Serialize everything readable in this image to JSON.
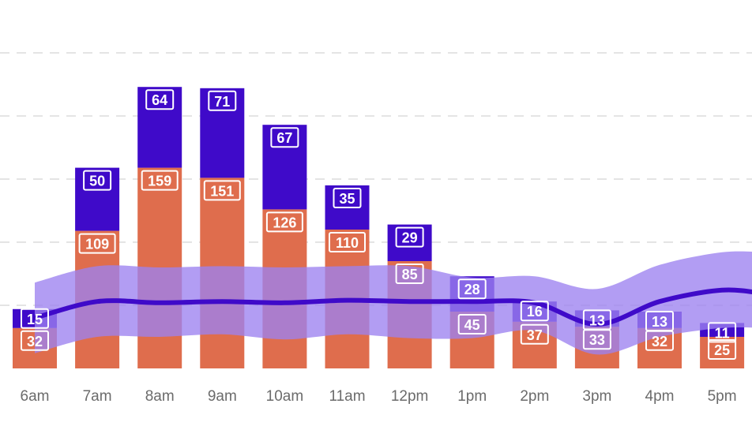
{
  "chart_data": {
    "type": "bar",
    "stacked": true,
    "categories": [
      "6am",
      "7am",
      "8am",
      "9am",
      "10am",
      "11am",
      "12pm",
      "1pm",
      "2pm",
      "3pm",
      "4pm",
      "5pm"
    ],
    "series": [
      {
        "values": [
          32,
          109,
          159,
          151,
          126,
          110,
          85,
          45,
          37,
          33,
          32,
          25
        ],
        "color": "#df6d4d"
      },
      {
        "values": [
          15,
          50,
          64,
          71,
          67,
          35,
          29,
          28,
          16,
          13,
          13,
          11
        ],
        "color": "#3f0ac9"
      }
    ],
    "overlay": {
      "line": {
        "values": [
          40,
          53,
          52,
          53,
          52,
          54,
          53,
          53,
          52,
          35,
          53,
          62
        ],
        "color": "#3f0ac9"
      },
      "band": {
        "upper": [
          68,
          81,
          80,
          81,
          80,
          81,
          81,
          72,
          73,
          63,
          82,
          92
        ],
        "lower": [
          12,
          25,
          25,
          27,
          23,
          27,
          24,
          24,
          30,
          11,
          25,
          32
        ],
        "color": "#9c81ef"
      }
    },
    "ylim": [
      0,
      250
    ],
    "grid": true,
    "xlabel": "",
    "ylabel": "",
    "title": ""
  }
}
